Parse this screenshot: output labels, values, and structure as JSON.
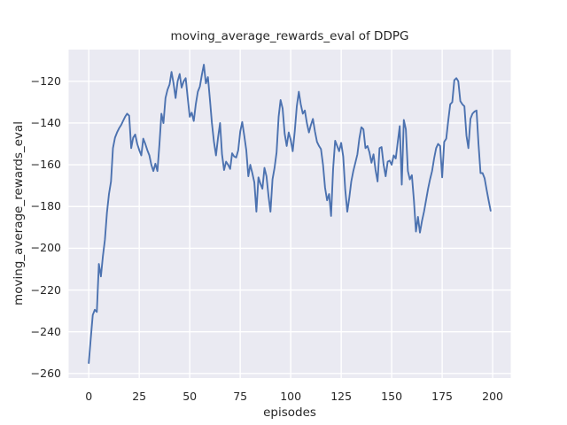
{
  "style": {
    "figure_background": "#ffffff",
    "axes_background": "#eaeaf2",
    "grid_color": "#ffffff",
    "line_color": "#4c72b0",
    "text_color": "#262626"
  },
  "chart_data": {
    "type": "line",
    "title": "moving_average_rewards_eval of DDPG",
    "xlabel": "episodes",
    "ylabel": "moving_average_rewards_eval",
    "x_ticks": [
      0,
      25,
      50,
      75,
      100,
      125,
      150,
      175,
      200
    ],
    "y_ticks": [
      -120,
      -140,
      -160,
      -180,
      -200,
      -220,
      -240,
      -260
    ],
    "xlim": [
      -9.95,
      208.95
    ],
    "ylim": [
      -262.2,
      -104.8
    ],
    "grid": true,
    "legend": "none",
    "series": [
      {
        "name": "moving_average_rewards_eval",
        "color": "#4c72b0",
        "x_start": 0,
        "x_step": 1,
        "values": [
          -255,
          -243,
          -232,
          -229.5,
          -230.5,
          -207.5,
          -213.5,
          -204,
          -196,
          -183,
          -174,
          -168,
          -152,
          -147,
          -144.5,
          -142.5,
          -141,
          -139,
          -137,
          -135.5,
          -136.5,
          -152,
          -147,
          -145.5,
          -150,
          -153,
          -155.5,
          -147.5,
          -150,
          -153,
          -155.5,
          -160,
          -163,
          -159.5,
          -163,
          -150,
          -135.5,
          -140,
          -128,
          -124,
          -121.5,
          -115.5,
          -121,
          -128,
          -120,
          -116.5,
          -123,
          -120,
          -118.5,
          -128,
          -137,
          -135,
          -139,
          -131,
          -125,
          -122.5,
          -117,
          -112,
          -121,
          -118,
          -129,
          -140,
          -149,
          -155.5,
          -147,
          -140,
          -155,
          -162.5,
          -158.5,
          -160,
          -162,
          -154.5,
          -156,
          -156.5,
          -153,
          -144,
          -139.5,
          -146,
          -153,
          -165.5,
          -160,
          -164,
          -168.5,
          -182.5,
          -166,
          -169,
          -171.5,
          -161.5,
          -165.5,
          -175,
          -182.5,
          -167,
          -161.5,
          -154,
          -137,
          -129,
          -133,
          -145,
          -151,
          -144.5,
          -148,
          -153.5,
          -144,
          -132,
          -125,
          -131,
          -135.5,
          -134,
          -140,
          -144.5,
          -141,
          -138,
          -144,
          -149,
          -151,
          -152.5,
          -160,
          -171,
          -177,
          -174,
          -184.5,
          -162,
          -148.5,
          -151,
          -153.5,
          -149.5,
          -156,
          -172,
          -182.5,
          -176,
          -168,
          -163,
          -159,
          -155,
          -147.5,
          -142,
          -143,
          -152,
          -151,
          -154,
          -159,
          -155,
          -162.5,
          -168,
          -152,
          -151.5,
          -160,
          -165.5,
          -158.5,
          -158,
          -160,
          -155.5,
          -157,
          -149,
          -141.5,
          -169.5,
          -138.5,
          -143,
          -163,
          -167,
          -165,
          -177,
          -192,
          -185,
          -192.5,
          -187,
          -182.5,
          -177,
          -171.5,
          -167,
          -163,
          -157,
          -152,
          -150,
          -151,
          -166,
          -149,
          -147.5,
          -139,
          -131,
          -130,
          -119.5,
          -118.5,
          -120,
          -129.5,
          -131,
          -132,
          -146,
          -152,
          -138,
          -135.5,
          -134.5,
          -134,
          -150,
          -164,
          -164,
          -166.5,
          -172,
          -177,
          -182
        ]
      }
    ]
  }
}
